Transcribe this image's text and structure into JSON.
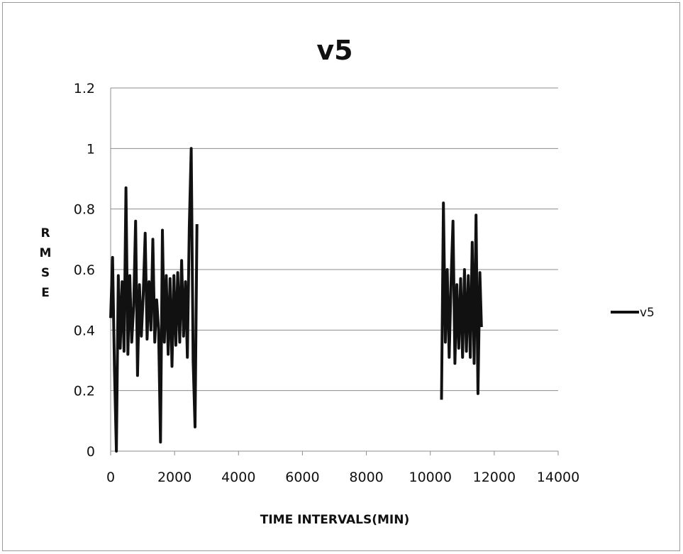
{
  "chart_data": {
    "type": "line",
    "title": "v5",
    "xlabel": "TIME INTERVALS(MIN)",
    "ylabel": "RMSE",
    "xlim": [
      0,
      14000
    ],
    "ylim": [
      0,
      1.2
    ],
    "x_ticks": [
      0,
      2000,
      4000,
      6000,
      8000,
      10000,
      12000,
      14000
    ],
    "x_tick_labels": [
      "0",
      "2000",
      "4000",
      "6000",
      "8000",
      "10000",
      "12000",
      "14000"
    ],
    "y_ticks": [
      0,
      0.2,
      0.4,
      0.6,
      0.8,
      1.0,
      1.2
    ],
    "y_tick_labels": [
      "0",
      "0.2",
      "0.4",
      "0.6",
      "0.8",
      "1",
      "1.2"
    ],
    "grid": "horizontal",
    "legend": "right",
    "series": [
      {
        "name": "v5",
        "color": "#111111",
        "segments": [
          {
            "x": [
              0,
              60,
              120,
              180,
              240,
              300,
              360,
              420,
              480,
              540,
              600,
              660,
              720,
              780,
              840,
              900,
              960,
              1020,
              1080,
              1140,
              1200,
              1260,
              1320,
              1380,
              1440,
              1500,
              1560,
              1620,
              1680,
              1740,
              1800,
              1860,
              1920,
              1980,
              2040,
              2100,
              2160,
              2220,
              2280,
              2340,
              2400,
              2460,
              2520,
              2580,
              2640,
              2700
            ],
            "y": [
              0.44,
              0.64,
              0.27,
              0.0,
              0.58,
              0.34,
              0.56,
              0.33,
              0.87,
              0.32,
              0.58,
              0.36,
              0.48,
              0.76,
              0.25,
              0.55,
              0.38,
              0.52,
              0.72,
              0.37,
              0.56,
              0.4,
              0.7,
              0.36,
              0.5,
              0.4,
              0.03,
              0.73,
              0.36,
              0.58,
              0.32,
              0.57,
              0.28,
              0.58,
              0.35,
              0.59,
              0.36,
              0.63,
              0.38,
              0.56,
              0.31,
              0.74,
              1.0,
              0.3,
              0.08,
              0.75
            ]
          },
          {
            "x": [
              10350,
              10410,
              10470,
              10530,
              10590,
              10650,
              10710,
              10770,
              10830,
              10890,
              10950,
              11010,
              11070,
              11130,
              11190,
              11250,
              11310,
              11370,
              11430,
              11490,
              11550,
              11600
            ],
            "y": [
              0.17,
              0.82,
              0.36,
              0.6,
              0.31,
              0.56,
              0.76,
              0.29,
              0.55,
              0.34,
              0.57,
              0.31,
              0.6,
              0.33,
              0.58,
              0.31,
              0.69,
              0.29,
              0.78,
              0.19,
              0.59,
              0.41
            ]
          }
        ]
      }
    ]
  }
}
